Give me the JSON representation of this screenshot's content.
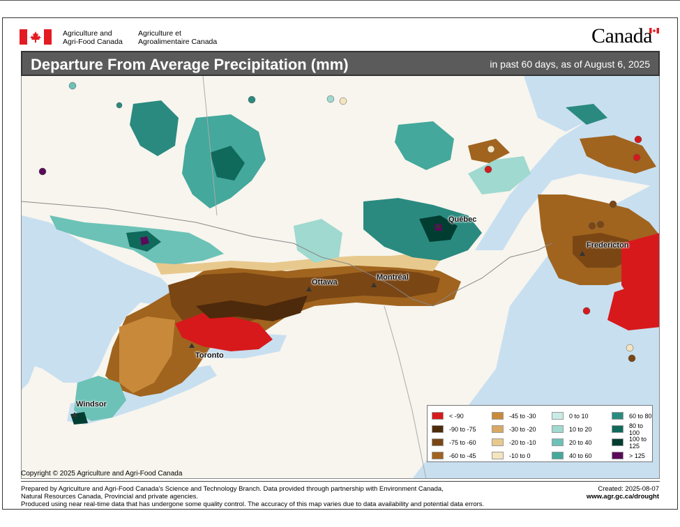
{
  "header": {
    "dept_en_line1": "Agriculture and",
    "dept_en_line2": "Agri-Food Canada",
    "dept_fr_line1": "Agriculture et",
    "dept_fr_line2": "Agroalimentaire Canada",
    "wordmark": "Canada"
  },
  "title": {
    "main": "Departure From Average Precipitation (mm)",
    "subtitle": "in past 60 days, as of August 6, 2025"
  },
  "cities": {
    "quebec": "Québec",
    "montreal": "Montréal",
    "ottawa": "Ottawa",
    "toronto": "Toronto",
    "windsor": "Windsor",
    "fredericton": "Fredericton"
  },
  "legend": [
    {
      "label": "< -90",
      "color": "#d7191c"
    },
    {
      "label": "-45 to -30",
      "color": "#c88a3a"
    },
    {
      "label": "0 to 10",
      "color": "#c9ebe5"
    },
    {
      "label": "60 to 80",
      "color": "#2a8a80"
    },
    {
      "label": "-90 to -75",
      "color": "#4d2a0b"
    },
    {
      "label": "-30 to -20",
      "color": "#d9a863"
    },
    {
      "label": "10 to 20",
      "color": "#9fd9cf"
    },
    {
      "label": "80 to 100",
      "color": "#0f6a5c"
    },
    {
      "label": "-75 to -60",
      "color": "#7a4614"
    },
    {
      "label": "-20 to -10",
      "color": "#e8c98d"
    },
    {
      "label": "20 to 40",
      "color": "#6cc2b6"
    },
    {
      "label": "100 to 125",
      "color": "#013d30"
    },
    {
      "label": "-60 to -45",
      "color": "#a0641f"
    },
    {
      "label": "-10 to 0",
      "color": "#f4e4bf"
    },
    {
      "label": "40 to 60",
      "color": "#44a89c"
    },
    {
      "label": "> 125",
      "color": "#5a0a5a"
    }
  ],
  "copyright": "Copyright © 2025 Agriculture and Agri-Food Canada",
  "footer": {
    "line1": "Prepared by Agriculture and Agri-Food Canada's Science and Technology Branch. Data provided through partnership with Environment Canada,",
    "line2": "Natural Resources Canada, Provincial and private agencies.",
    "line3": "Produced using near real-time data that has undergone some quality control. The accuracy of this map varies due to data availability and potential data errors.",
    "created": "Created:  2025-08-07",
    "url": "www.agr.gc.ca/drought"
  },
  "colors": {
    "water": "#c8dff0",
    "land": "#f7f5ee",
    "title_bg": "#5b5b5b"
  }
}
